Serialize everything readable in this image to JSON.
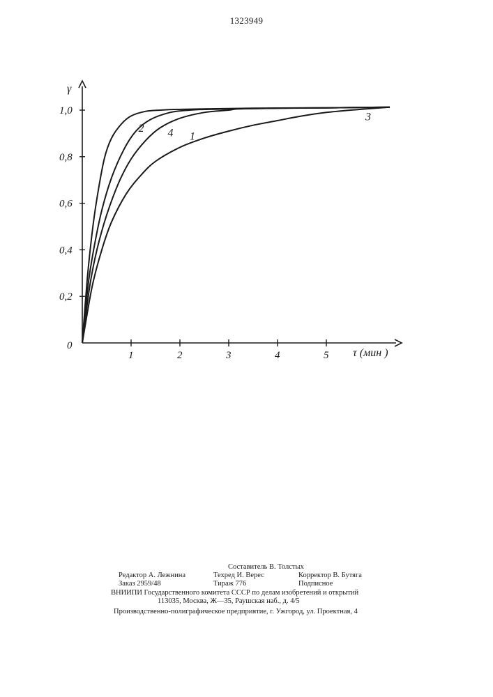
{
  "patent_number": "1323949",
  "chart_data": {
    "type": "line",
    "xlabel": "τ (мин )",
    "ylabel": "γ",
    "xlim": [
      0,
      6.2
    ],
    "ylim": [
      0,
      1.05
    ],
    "x_ticks": [
      1,
      2,
      3,
      4,
      5
    ],
    "x_tick_labels": [
      "1",
      "2",
      "3",
      "4",
      "5"
    ],
    "y_ticks": [
      0.2,
      0.4,
      0.6,
      0.8,
      1.0
    ],
    "y_tick_labels": [
      "0,2",
      "0,4",
      "0,6",
      "0,8",
      "1,0"
    ],
    "origin_label": "0",
    "grid": false,
    "legend": "inline labels on curves",
    "series": [
      {
        "name": "1",
        "x": [
          0,
          0.15,
          0.3,
          0.5,
          0.75,
          1.0,
          1.3,
          1.6,
          2.0,
          2.5,
          3.0,
          3.2,
          4.0,
          5.0,
          6.3
        ],
        "y": [
          0,
          0.24,
          0.4,
          0.55,
          0.69,
          0.79,
          0.87,
          0.925,
          0.965,
          0.99,
          1.0,
          1.005,
          1.008,
          1.01,
          1.013
        ]
      },
      {
        "name": "2",
        "x": [
          0,
          0.1,
          0.2,
          0.3,
          0.45,
          0.6,
          0.8,
          1.0,
          1.3,
          1.6,
          1.9,
          2.5,
          3.5,
          5.0,
          6.3
        ],
        "y": [
          0,
          0.27,
          0.47,
          0.62,
          0.79,
          0.88,
          0.94,
          0.975,
          0.995,
          1.0,
          1.003,
          1.005,
          1.008,
          1.01,
          1.013
        ]
      },
      {
        "name": "3",
        "x": [
          0,
          0.2,
          0.4,
          0.6,
          0.9,
          1.2,
          1.5,
          2.0,
          2.5,
          3.0,
          3.5,
          4.0,
          4.5,
          5.0,
          5.5,
          6.3
        ],
        "y": [
          0,
          0.24,
          0.4,
          0.52,
          0.64,
          0.72,
          0.78,
          0.84,
          0.88,
          0.91,
          0.935,
          0.955,
          0.975,
          0.99,
          1.0,
          1.013
        ]
      },
      {
        "name": "4",
        "x": [
          0,
          0.12,
          0.25,
          0.4,
          0.6,
          0.85,
          1.1,
          1.4,
          1.8,
          2.2,
          2.5,
          3.0,
          4.0,
          5.0,
          6.3
        ],
        "y": [
          0,
          0.25,
          0.42,
          0.57,
          0.71,
          0.83,
          0.91,
          0.96,
          0.99,
          1.0,
          1.003,
          1.005,
          1.008,
          1.01,
          1.013
        ]
      }
    ],
    "series_labels": [
      {
        "text": "2",
        "x": 1.15,
        "y": 0.925
      },
      {
        "text": "4",
        "x": 1.75,
        "y": 0.905
      },
      {
        "text": "1",
        "x": 2.2,
        "y": 0.89
      },
      {
        "text": "3",
        "x": 5.8,
        "y": 0.975
      }
    ]
  },
  "colophon": {
    "editor": "Редактор А. Лежнина",
    "compiler": "Составитель В. Толстых",
    "techred": "Техред И. Верес",
    "corrector": "Корректор В. Бутяга",
    "order": "Заказ 2959/48",
    "circulation": "Тираж 776",
    "subscription": "Подписное",
    "institute": "ВНИИПИ Государственного комитета СССР по делам изобретений и открытий",
    "address": "113035, Москва, Ж—35, Раушская наб., д. 4/5",
    "printer": "Производственно-полиграфическое предприятие, г. Ужгород, ул. Проектная, 4"
  }
}
